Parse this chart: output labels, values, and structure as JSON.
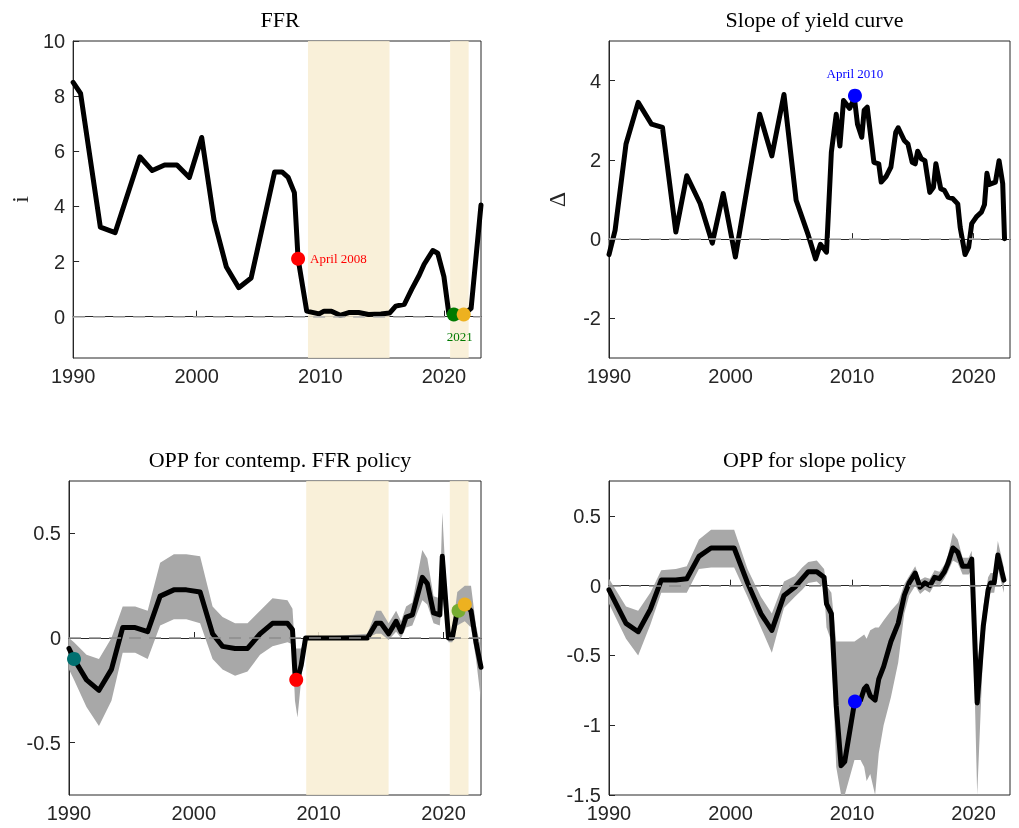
{
  "chart_data": [
    {
      "type": "line",
      "title": "FFR",
      "ylabel": "i",
      "xlim": [
        1990,
        2023
      ],
      "xticks": [
        1990,
        2000,
        2010,
        2020
      ],
      "ylim": [
        -1.5,
        10
      ],
      "yticks": [
        0,
        2,
        4,
        6,
        8,
        10
      ],
      "grid": false,
      "series": [
        {
          "type": "line",
          "color": "#000000",
          "x": [
            1990,
            1990.6,
            1992.2,
            1993.4,
            1995.4,
            1996.4,
            1997.4,
            1998.4,
            1999.4,
            2000.4,
            2001.4,
            2002.4,
            2003.4,
            2004.4,
            2006.3,
            2006.9,
            2007.4,
            2007.9,
            2008.2,
            2008.9,
            2009.9,
            2010.3,
            2010.9,
            2011.6,
            2012.3,
            2013.1,
            2013.9,
            2014.9,
            2015.6,
            2016.1,
            2016.8,
            2017.4,
            2018,
            2018.4,
            2019.1,
            2019.5,
            2020,
            2020.4,
            2020.8,
            2021.6,
            2022.2,
            2023
          ],
          "values": [
            8.5,
            8.1,
            3.25,
            3.05,
            5.8,
            5.3,
            5.5,
            5.5,
            5.05,
            6.5,
            3.5,
            1.8,
            1.05,
            1.4,
            5.25,
            5.25,
            5.05,
            4.5,
            2.1,
            0.2,
            0.1,
            0.2,
            0.2,
            0.05,
            0.15,
            0.15,
            0.08,
            0.1,
            0.13,
            0.38,
            0.45,
            1.0,
            1.5,
            1.9,
            2.4,
            2.3,
            1.45,
            0.1,
            0.08,
            0.08,
            0.3,
            4.05
          ]
        },
        {
          "type": "scatter",
          "marker": "circle",
          "color": "#ff0000",
          "x": [
            2008.2
          ],
          "values": [
            2.1
          ]
        },
        {
          "type": "scatter",
          "marker": "circle",
          "color": "#007a00",
          "x": [
            2020.8
          ],
          "values": [
            0.08
          ]
        },
        {
          "type": "scatter",
          "marker": "circle",
          "color": "#edb120",
          "x": [
            2021.6
          ],
          "values": [
            0.08
          ]
        }
      ],
      "bands": [
        {
          "axis": "x",
          "from": 2009,
          "to": 2015.6,
          "color": "#f8edd2"
        },
        {
          "axis": "x",
          "from": 2020.5,
          "to": 2022,
          "color": "#f8edd2"
        }
      ],
      "ref_lines": [
        {
          "axis": "y",
          "value": 0,
          "color": "#b4b4b4",
          "line_style": "dashed"
        }
      ],
      "annotations": [
        {
          "text": "April 2008",
          "x": 2008.2,
          "y": 2.1
        },
        {
          "text": "2021",
          "x": 2020.8,
          "y": 0.08
        }
      ]
    },
    {
      "type": "line",
      "title": "Slope of yield curve",
      "ylabel": "Δ",
      "xlim": [
        1990,
        2023
      ],
      "xticks": [
        1990,
        2000,
        2010,
        2020
      ],
      "ylim": [
        -3,
        5
      ],
      "yticks": [
        -2,
        0,
        2,
        4
      ],
      "grid": false,
      "series": [
        {
          "type": "line",
          "color": "#000000",
          "x": [
            1990,
            1990.5,
            1991.4,
            1992.4,
            1993.5,
            1994.4,
            1995.5,
            1996.4,
            1997.5,
            1998.5,
            1999.4,
            2000.4,
            2001.4,
            2002.4,
            2003.4,
            2004.4,
            2005.4,
            2006.4,
            2007,
            2007.4,
            2007.9,
            2008.3,
            2008.7,
            2009,
            2009.3,
            2009.8,
            2010.2,
            2010.45,
            2010.8,
            2011,
            2011.25,
            2011.8,
            2012.2,
            2012.4,
            2012.8,
            2013.2,
            2013.6,
            2013.8,
            2014.3,
            2014.6,
            2014.95,
            2015.2,
            2015.4,
            2015.7,
            2016,
            2016.4,
            2016.7,
            2016.9,
            2017.3,
            2017.6,
            2017.9,
            2018.3,
            2018.7,
            2018.9,
            2019.3,
            2019.6,
            2019.85,
            2020.25,
            2020.65,
            2020.9,
            2021.1,
            2021.3,
            2021.8,
            2022.1,
            2022.4,
            2022.55
          ],
          "values": [
            -0.39,
            0.22,
            2.4,
            3.45,
            2.9,
            2.82,
            0.18,
            1.6,
            0.9,
            -0.1,
            1.15,
            -0.45,
            1.35,
            3.15,
            2.1,
            3.65,
            0.98,
            0.1,
            -0.5,
            -0.13,
            -0.33,
            2.2,
            3.15,
            2.35,
            3.5,
            3.3,
            3.55,
            2.9,
            2.57,
            3.25,
            3.33,
            1.94,
            1.9,
            1.44,
            1.58,
            1.82,
            2.7,
            2.81,
            2.49,
            2.4,
            1.94,
            1.9,
            2.22,
            2.03,
            1.98,
            1.18,
            1.31,
            1.9,
            1.27,
            1.23,
            1.06,
            1.02,
            0.89,
            0.3,
            -0.39,
            -0.2,
            0.39,
            0.57,
            0.68,
            0.87,
            1.66,
            1.38,
            1.44,
            1.98,
            1.4,
            0.01
          ]
        },
        {
          "type": "scatter",
          "marker": "circle",
          "color": "#0000ff",
          "x": [
            2010.24
          ],
          "values": [
            3.62
          ]
        }
      ],
      "ref_lines": [
        {
          "axis": "y",
          "value": 0,
          "color": "#b4b4b4",
          "line_style": "dashed"
        }
      ],
      "annotations": [
        {
          "text": "April 2010",
          "x": 2010.24,
          "y": 3.62
        }
      ]
    },
    {
      "type": "line",
      "title": "OPP for contemp. FFR policy",
      "xlim": [
        1990,
        2023
      ],
      "xticks": [
        1990,
        2000,
        2010,
        2020
      ],
      "ylim": [
        -0.75,
        0.75
      ],
      "yticks": [
        -0.5,
        0,
        0.5
      ],
      "grid": false,
      "series": [
        {
          "type": "line",
          "color": "#000000",
          "x": [
            1990,
            1990.4,
            1991.4,
            1992.4,
            1993.4,
            1994.3,
            1995.3,
            1996.3,
            1997.3,
            1998.4,
            1999.4,
            2000.5,
            2001.5,
            2002.3,
            2003.3,
            2004.3,
            2005.3,
            2006.3,
            2007.5,
            2007.9,
            2008.1,
            2008.3,
            2008.6,
            2008.95,
            2013.9,
            2014.6,
            2015,
            2015.6,
            2016.2,
            2016.6,
            2017,
            2017.5,
            2018.3,
            2018.7,
            2019.2,
            2019.7,
            2019.9,
            2020.4,
            2020.7,
            2021.1,
            2021.7,
            2022.2,
            2022.6,
            2023
          ],
          "values": [
            -0.05,
            -0.1,
            -0.2,
            -0.25,
            -0.15,
            0.05,
            0.05,
            0.03,
            0.2,
            0.23,
            0.23,
            0.22,
            0.02,
            -0.04,
            -0.05,
            -0.05,
            0.02,
            0.07,
            0.07,
            0.04,
            -0.17,
            -0.2,
            -0.13,
            0,
            0,
            0.07,
            0.07,
            0.02,
            0.08,
            0.03,
            0.1,
            0.11,
            0.29,
            0.26,
            0.12,
            0.11,
            0.39,
            0,
            0,
            0.13,
            0.16,
            0.13,
            -0.02,
            -0.14
          ],
          "lower": [
            -0.15,
            -0.2,
            -0.33,
            -0.42,
            -0.3,
            -0.07,
            -0.07,
            -0.1,
            0.06,
            0.09,
            0.09,
            0.07,
            -0.1,
            -0.15,
            -0.18,
            -0.16,
            -0.08,
            -0.04,
            -0.02,
            -0.03,
            -0.3,
            -0.38,
            -0.2,
            0,
            0,
            0.02,
            0.02,
            -0.01,
            0.03,
            0,
            0.05,
            0.06,
            0.18,
            0.16,
            0.07,
            0.06,
            0.2,
            -0.02,
            -0.02,
            0.06,
            0.08,
            0.05,
            -0.1,
            -0.3
          ],
          "upper": [
            0,
            -0.02,
            -0.08,
            -0.1,
            0,
            0.15,
            0.15,
            0.13,
            0.36,
            0.4,
            0.4,
            0.39,
            0.15,
            0.1,
            0.07,
            0.07,
            0.13,
            0.19,
            0.18,
            0.14,
            -0.05,
            -0.05,
            -0.05,
            0,
            0.02,
            0.13,
            0.13,
            0.07,
            0.13,
            0.08,
            0.15,
            0.17,
            0.42,
            0.38,
            0.2,
            0.19,
            0.6,
            0.03,
            0.03,
            0.22,
            0.25,
            0.25,
            0.06,
            -0.05
          ]
        },
        {
          "type": "scatter",
          "marker": "circle",
          "color": "#007070",
          "x": [
            1990.4
          ],
          "values": [
            -0.1
          ]
        },
        {
          "type": "scatter",
          "marker": "circle",
          "color": "#ff0000",
          "x": [
            2008.2
          ],
          "values": [
            -0.2
          ]
        },
        {
          "type": "scatter",
          "marker": "circle",
          "color": "#77ac30",
          "x": [
            2021.2
          ],
          "values": [
            0.13
          ]
        },
        {
          "type": "scatter",
          "marker": "circle",
          "color": "#edb120",
          "x": [
            2021.7
          ],
          "values": [
            0.16
          ]
        }
      ],
      "bands": [
        {
          "axis": "x",
          "from": 2009,
          "to": 2015.6,
          "color": "#f8edd2"
        },
        {
          "axis": "x",
          "from": 2020.5,
          "to": 2022,
          "color": "#f8edd2"
        }
      ],
      "ref_lines": [
        {
          "axis": "y",
          "value": 0,
          "color": "#8c8c8c",
          "line_style": "dashed"
        }
      ]
    },
    {
      "type": "line",
      "title": "OPP for slope policy",
      "xlim": [
        1990,
        2023
      ],
      "xticks": [
        1990,
        2000,
        2010,
        2020
      ],
      "ylim": [
        -1.5,
        0.75
      ],
      "yticks": [
        -1.5,
        -1,
        -0.5,
        0,
        0.5
      ],
      "grid": false,
      "series": [
        {
          "type": "line",
          "color": "#000000",
          "x": [
            1990,
            1991.4,
            1992.4,
            1993.4,
            1994.3,
            1995.5,
            1996.4,
            1997.4,
            1998.4,
            1999.5,
            2000.3,
            2001.4,
            2002.5,
            2003.4,
            2004.4,
            2005.3,
            2005.9,
            2006.4,
            2007.1,
            2007.7,
            2007.9,
            2008.3,
            2008.7,
            2009.1,
            2009.4,
            2010.2,
            2010.7,
            2011,
            2011.2,
            2011.5,
            2011.9,
            2012.2,
            2012.6,
            2013.2,
            2013.8,
            2014.3,
            2014.7,
            2015.2,
            2015.6,
            2016,
            2016.4,
            2016.8,
            2017.2,
            2017.6,
            2017.9,
            2018.3,
            2018.7,
            2019.1,
            2019.6,
            2019.85,
            2020.3,
            2020.8,
            2021.2,
            2021.4,
            2021.7,
            2022,
            2022.5
          ],
          "values": [
            -0.03,
            -0.27,
            -0.33,
            -0.17,
            0.04,
            0.04,
            0.05,
            0.21,
            0.27,
            0.27,
            0.27,
            0.02,
            -0.2,
            -0.32,
            -0.07,
            -0.01,
            0.05,
            0.1,
            0.1,
            0.06,
            -0.13,
            -0.2,
            -0.86,
            -1.29,
            -1.26,
            -0.84,
            -0.82,
            -0.74,
            -0.72,
            -0.79,
            -0.82,
            -0.67,
            -0.58,
            -0.4,
            -0.27,
            -0.07,
            0.02,
            0.09,
            -0.01,
            0.02,
            0,
            0.06,
            0.05,
            0.1,
            0.16,
            0.27,
            0.24,
            0.14,
            0.14,
            0.19,
            -0.84,
            -0.29,
            -0.03,
            0.02,
            0.02,
            0.22,
            0.04
          ],
          "lower": [
            -0.13,
            -0.38,
            -0.5,
            -0.28,
            -0.05,
            -0.05,
            -0.05,
            0.12,
            0.13,
            0.13,
            0.13,
            -0.08,
            -0.3,
            -0.48,
            -0.16,
            -0.08,
            -0.03,
            0.02,
            0.03,
            -0.02,
            -0.3,
            -0.4,
            -1.3,
            -1.5,
            -1.5,
            -1.25,
            -1.25,
            -1.3,
            -1.4,
            -1.35,
            -1.5,
            -1.2,
            -1,
            -0.8,
            -0.55,
            -0.2,
            -0.07,
            0,
            -0.06,
            -0.03,
            -0.05,
            0.01,
            0,
            0.05,
            0.1,
            0.18,
            0.16,
            0.08,
            0.08,
            0.12,
            -1.5,
            -0.45,
            -0.12,
            -0.05,
            -0.05,
            0.12,
            -0.05
          ],
          "upper": [
            0.05,
            -0.15,
            -0.18,
            -0.05,
            0.11,
            0.12,
            0.14,
            0.33,
            0.4,
            0.4,
            0.4,
            0.12,
            -0.08,
            -0.2,
            0.03,
            0.07,
            0.13,
            0.17,
            0.18,
            0.12,
            0,
            -0.05,
            -0.4,
            -0.4,
            -0.4,
            -0.4,
            -0.37,
            -0.35,
            -0.38,
            -0.32,
            -0.3,
            -0.3,
            -0.25,
            -0.18,
            -0.12,
            0.01,
            0.07,
            0.14,
            0.04,
            0.06,
            0.05,
            0.11,
            0.1,
            0.15,
            0.22,
            0.38,
            0.33,
            0.2,
            0.2,
            0.25,
            -0.6,
            -0.15,
            0.06,
            0.09,
            0.09,
            0.32,
            0.13
          ]
        },
        {
          "type": "scatter",
          "marker": "circle",
          "color": "#0000ff",
          "x": [
            2010.24
          ],
          "values": [
            -0.83
          ]
        }
      ],
      "ref_lines": [
        {
          "axis": "y",
          "value": 0,
          "color": "#8c8c8c",
          "line_style": "dashed"
        }
      ]
    }
  ]
}
